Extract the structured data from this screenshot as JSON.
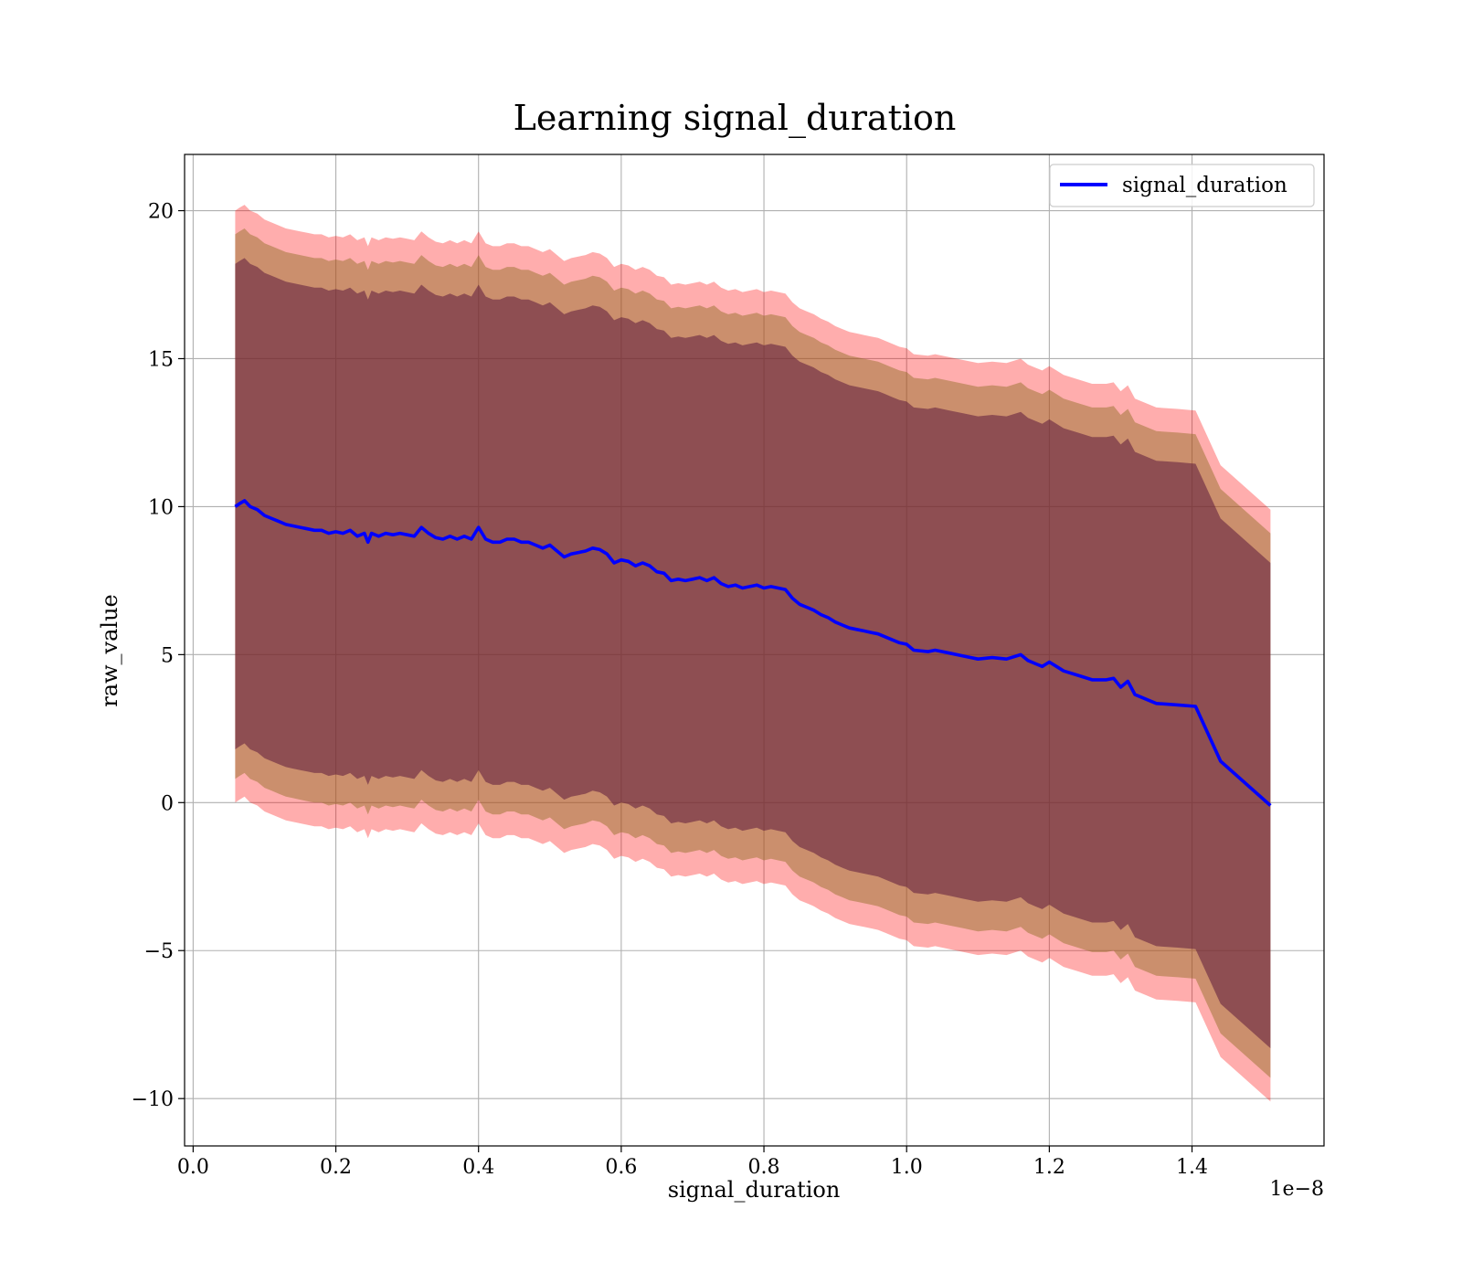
{
  "chart_data": {
    "type": "line",
    "title": "Learning signal_duration",
    "xlabel": "signal_duration",
    "ylabel": "raw_value",
    "x_offset_text": "1e−8",
    "xlim": [
      -0.012,
      1.585
    ],
    "ylim": [
      -11.6,
      21.9
    ],
    "grid": true,
    "legend_position": "top-right",
    "x_ticks": [
      0.0,
      0.2,
      0.4,
      0.6,
      0.8,
      1.0,
      1.2,
      1.4
    ],
    "x_tick_labels": [
      "0.0",
      "0.2",
      "0.4",
      "0.6",
      "0.8",
      "1.0",
      "1.2",
      "1.4"
    ],
    "y_ticks": [
      -10,
      -5,
      0,
      5,
      10,
      15,
      20
    ],
    "y_tick_labels": [
      "−10",
      "−5",
      "0",
      "5",
      "10",
      "15",
      "20"
    ],
    "colors": {
      "line": "#0000ff",
      "band_outer": "#ff0000",
      "band_middle": "#8b6a1f",
      "band_inner": "#5c1a3d",
      "grid": "#b0b0b0"
    },
    "band_half_widths": [
      10,
      9.2,
      8.2
    ],
    "series": [
      {
        "name": "signal_duration",
        "x": [
          0.059,
          0.065,
          0.072,
          0.08,
          0.09,
          0.1,
          0.11,
          0.12,
          0.13,
          0.14,
          0.15,
          0.16,
          0.17,
          0.18,
          0.19,
          0.2,
          0.21,
          0.22,
          0.23,
          0.24,
          0.245,
          0.25,
          0.26,
          0.27,
          0.28,
          0.29,
          0.3,
          0.31,
          0.32,
          0.33,
          0.34,
          0.35,
          0.36,
          0.37,
          0.38,
          0.39,
          0.4,
          0.41,
          0.42,
          0.43,
          0.44,
          0.45,
          0.46,
          0.47,
          0.48,
          0.49,
          0.5,
          0.51,
          0.52,
          0.53,
          0.54,
          0.55,
          0.56,
          0.57,
          0.58,
          0.59,
          0.6,
          0.61,
          0.62,
          0.63,
          0.64,
          0.65,
          0.66,
          0.67,
          0.68,
          0.69,
          0.7,
          0.71,
          0.72,
          0.73,
          0.74,
          0.75,
          0.76,
          0.77,
          0.78,
          0.79,
          0.8,
          0.81,
          0.82,
          0.83,
          0.84,
          0.85,
          0.86,
          0.87,
          0.88,
          0.89,
          0.9,
          0.91,
          0.92,
          0.93,
          0.94,
          0.95,
          0.96,
          0.97,
          0.98,
          0.99,
          1.0,
          1.01,
          1.03,
          1.04,
          1.06,
          1.08,
          1.1,
          1.12,
          1.14,
          1.16,
          1.17,
          1.18,
          1.19,
          1.2,
          1.21,
          1.22,
          1.24,
          1.26,
          1.28,
          1.29,
          1.3,
          1.31,
          1.32,
          1.35,
          1.38,
          1.405,
          1.44,
          1.51
        ],
        "values": [
          10.0,
          10.1,
          10.2,
          10.0,
          9.9,
          9.7,
          9.6,
          9.5,
          9.4,
          9.35,
          9.3,
          9.25,
          9.2,
          9.2,
          9.1,
          9.15,
          9.1,
          9.2,
          9.0,
          9.1,
          8.8,
          9.1,
          9.0,
          9.1,
          9.05,
          9.1,
          9.05,
          9.0,
          9.3,
          9.1,
          8.95,
          8.9,
          9.0,
          8.9,
          9.0,
          8.9,
          9.3,
          8.9,
          8.8,
          8.8,
          8.9,
          8.9,
          8.8,
          8.8,
          8.7,
          8.6,
          8.7,
          8.5,
          8.3,
          8.4,
          8.45,
          8.5,
          8.6,
          8.55,
          8.4,
          8.1,
          8.2,
          8.15,
          8.0,
          8.1,
          8.0,
          7.8,
          7.75,
          7.5,
          7.55,
          7.5,
          7.55,
          7.6,
          7.5,
          7.6,
          7.4,
          7.3,
          7.35,
          7.25,
          7.3,
          7.35,
          7.25,
          7.3,
          7.25,
          7.2,
          6.9,
          6.7,
          6.6,
          6.5,
          6.35,
          6.25,
          6.1,
          6.0,
          5.9,
          5.85,
          5.8,
          5.75,
          5.7,
          5.6,
          5.5,
          5.4,
          5.35,
          5.15,
          5.1,
          5.15,
          5.05,
          4.95,
          4.85,
          4.9,
          4.85,
          5.0,
          4.8,
          4.7,
          4.6,
          4.75,
          4.6,
          4.45,
          4.3,
          4.15,
          4.15,
          4.2,
          3.9,
          4.1,
          3.65,
          3.35,
          3.3,
          3.25,
          1.4,
          -0.1
        ]
      }
    ]
  }
}
